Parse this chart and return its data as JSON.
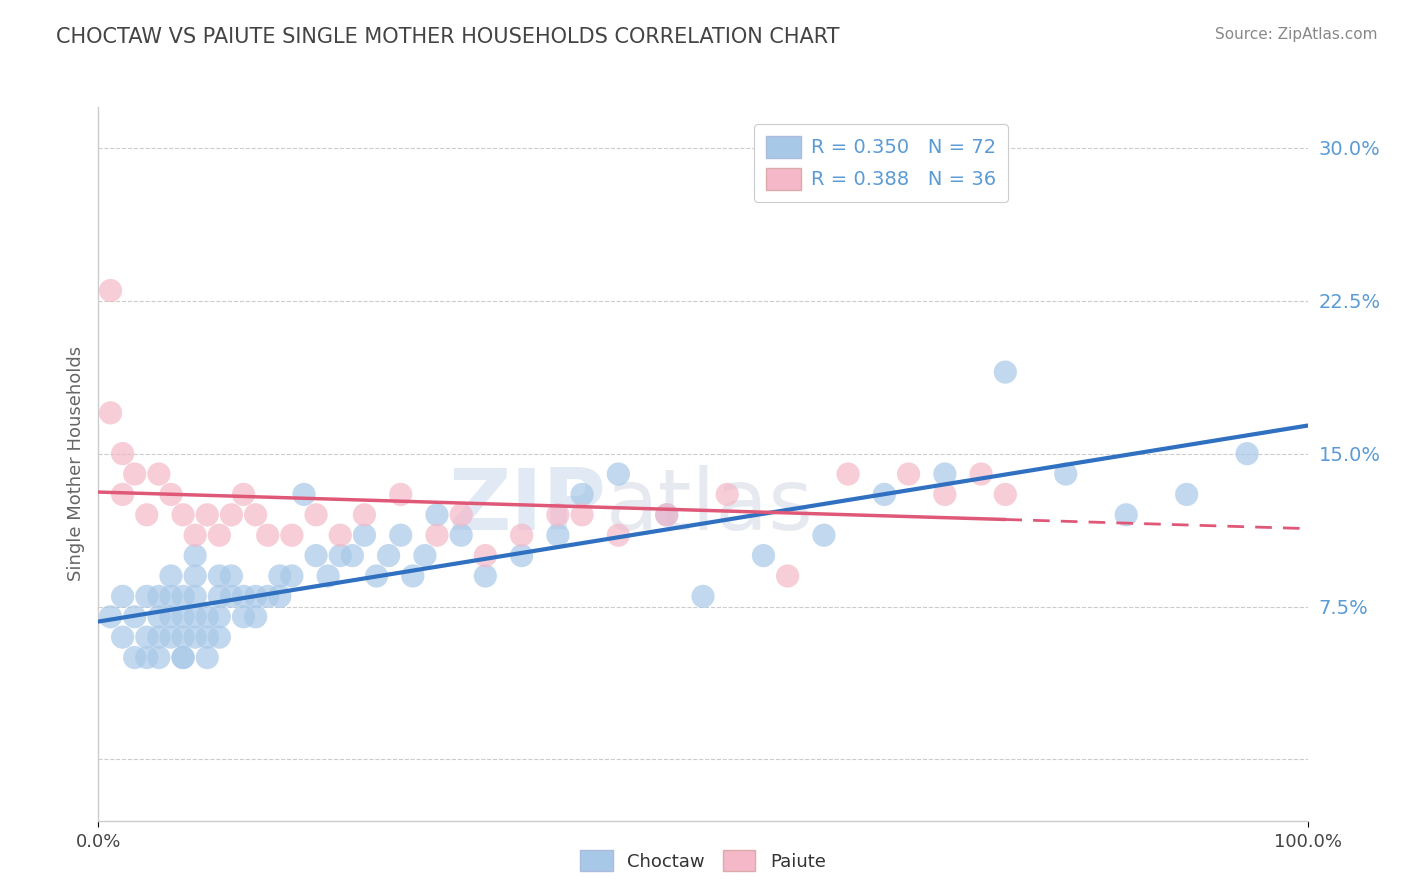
{
  "title": "CHOCTAW VS PAIUTE SINGLE MOTHER HOUSEHOLDS CORRELATION CHART",
  "source_text": "Source: ZipAtlas.com",
  "ylabel": "Single Mother Households",
  "xlim": [
    0,
    100
  ],
  "ylim": [
    -3,
    32
  ],
  "yticks": [
    0,
    7.5,
    15.0,
    22.5,
    30.0
  ],
  "ytick_labels": [
    "",
    "7.5%",
    "15.0%",
    "22.5%",
    "30.0%"
  ],
  "choctaw_color": "#a8c8e8",
  "paiute_color": "#f4b8c8",
  "choctaw_line_color": "#3070c0",
  "paiute_line_color": "#e05878",
  "choctaw_R": 0.35,
  "choctaw_N": 72,
  "paiute_R": 0.388,
  "paiute_N": 36,
  "legend_label_choctaw": "R = 0.350   N = 72",
  "legend_label_paiute": "R = 0.388   N = 36",
  "watermark_zip": "ZIP",
  "watermark_atlas": "atlas",
  "background_color": "#ffffff",
  "tick_color": "#5b9bd5",
  "title_color": "#444444",
  "source_color": "#888888",
  "choctaw_x": [
    1,
    2,
    2,
    3,
    3,
    4,
    4,
    4,
    5,
    5,
    5,
    5,
    6,
    6,
    6,
    6,
    7,
    7,
    7,
    7,
    7,
    8,
    8,
    8,
    8,
    8,
    9,
    9,
    9,
    10,
    10,
    10,
    10,
    11,
    11,
    12,
    12,
    13,
    13,
    14,
    15,
    15,
    16,
    17,
    18,
    19,
    20,
    21,
    22,
    23,
    24,
    25,
    26,
    27,
    28,
    30,
    32,
    35,
    38,
    40,
    43,
    47,
    50,
    55,
    60,
    65,
    70,
    75,
    80,
    85,
    90,
    95
  ],
  "choctaw_y": [
    7,
    6,
    8,
    5,
    7,
    6,
    8,
    5,
    6,
    7,
    8,
    5,
    6,
    7,
    8,
    9,
    5,
    6,
    7,
    8,
    5,
    6,
    7,
    8,
    9,
    10,
    5,
    6,
    7,
    8,
    9,
    7,
    6,
    8,
    9,
    7,
    8,
    7,
    8,
    8,
    9,
    8,
    9,
    13,
    10,
    9,
    10,
    10,
    11,
    9,
    10,
    11,
    9,
    10,
    12,
    11,
    9,
    10,
    11,
    13,
    14,
    12,
    8,
    10,
    11,
    13,
    14,
    19,
    14,
    12,
    13,
    15
  ],
  "paiute_x": [
    1,
    1,
    2,
    2,
    3,
    4,
    5,
    6,
    7,
    8,
    9,
    10,
    11,
    12,
    13,
    14,
    16,
    18,
    20,
    22,
    25,
    28,
    30,
    32,
    35,
    38,
    40,
    43,
    47,
    52,
    57,
    62,
    67,
    70,
    73,
    75
  ],
  "paiute_y": [
    23,
    17,
    15,
    13,
    14,
    12,
    14,
    13,
    12,
    11,
    12,
    11,
    12,
    13,
    12,
    11,
    11,
    12,
    11,
    12,
    13,
    11,
    12,
    10,
    11,
    12,
    12,
    11,
    12,
    13,
    9,
    14,
    14,
    13,
    14,
    13
  ]
}
